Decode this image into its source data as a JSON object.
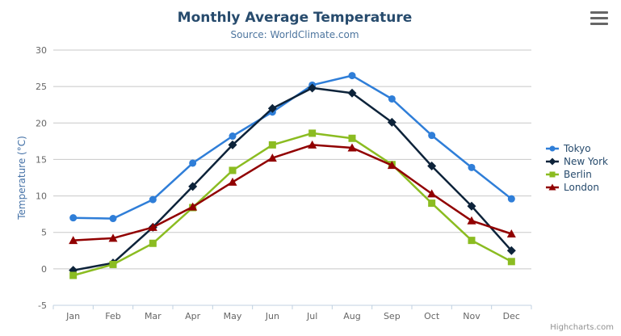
{
  "chart": {
    "credit": "Highcharts.com",
    "menu_icon": "hamburger-menu-icon",
    "colors": {
      "title": "#274b6d",
      "subtitle": "#4d759e",
      "axis_title": "#4572a7",
      "tick_label": "#666666",
      "grid_line": "#c8c8c8",
      "axis_line": "#c0d0e0",
      "credit": "#909090",
      "menu_bars": "#666666"
    }
  },
  "chart_data": {
    "type": "line",
    "title": "Monthly Average Temperature",
    "subtitle": "Source: WorldClimate.com",
    "xlabel": "",
    "ylabel": "Temperature (°C)",
    "ylim": [
      -5,
      30
    ],
    "yticks": [
      -5,
      0,
      5,
      10,
      15,
      20,
      25,
      30
    ],
    "grid": true,
    "legend_position": "right",
    "categories": [
      "Jan",
      "Feb",
      "Mar",
      "Apr",
      "May",
      "Jun",
      "Jul",
      "Aug",
      "Sep",
      "Oct",
      "Nov",
      "Dec"
    ],
    "series": [
      {
        "name": "Tokyo",
        "color": "#2f7ed8",
        "marker": "circle",
        "values": [
          7.0,
          6.9,
          9.5,
          14.5,
          18.2,
          21.5,
          25.2,
          26.5,
          23.3,
          18.3,
          13.9,
          9.6
        ]
      },
      {
        "name": "New York",
        "color": "#0d233a",
        "marker": "diamond",
        "values": [
          -0.2,
          0.8,
          5.7,
          11.3,
          17.0,
          22.0,
          24.8,
          24.1,
          20.1,
          14.1,
          8.6,
          2.5
        ]
      },
      {
        "name": "Berlin",
        "color": "#8bbc21",
        "marker": "square",
        "values": [
          -0.9,
          0.6,
          3.5,
          8.4,
          13.5,
          17.0,
          18.6,
          17.9,
          14.3,
          9.0,
          3.9,
          1.0
        ]
      },
      {
        "name": "London",
        "color": "#910000",
        "marker": "triangle",
        "values": [
          3.9,
          4.2,
          5.7,
          8.5,
          11.9,
          15.2,
          17.0,
          16.6,
          14.2,
          10.3,
          6.6,
          4.8
        ]
      }
    ]
  }
}
